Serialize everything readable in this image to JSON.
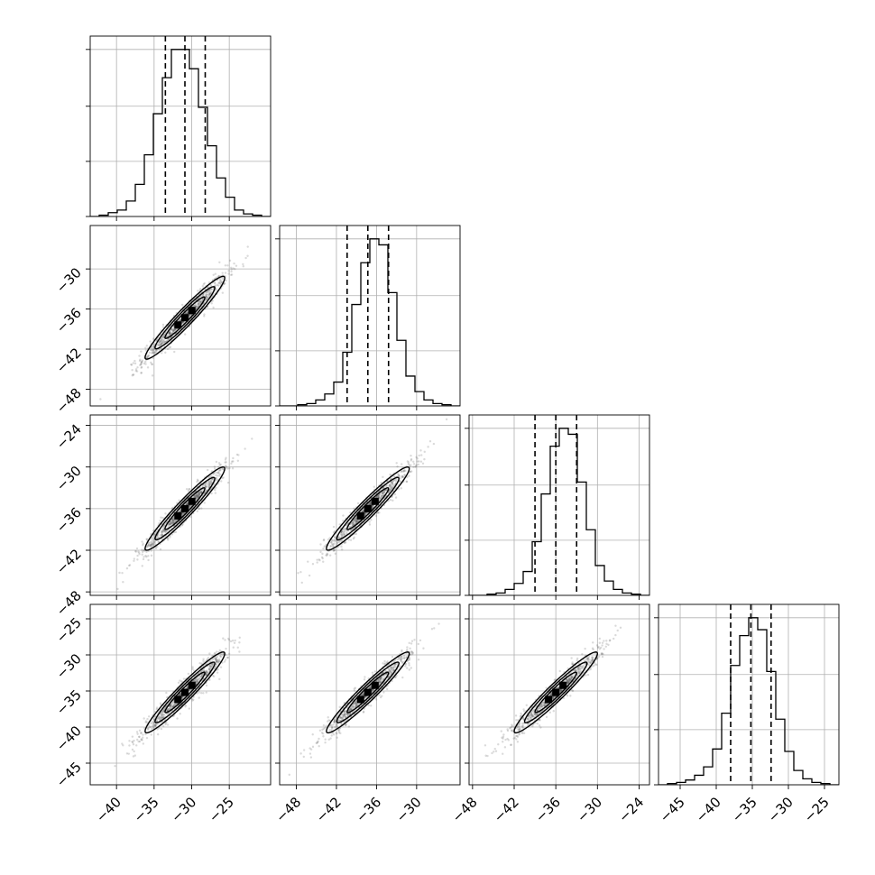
{
  "chart_data": {
    "type": "corner",
    "n_params": 4,
    "grid": true,
    "quantile_style": "dashed",
    "colors": {
      "lines": "#000000",
      "grid": "#b0b0b0",
      "points": "#555555"
    },
    "parameters": [
      {
        "range": [
          -43.5,
          -19.5
        ],
        "ticks": [
          -40,
          -35,
          -30,
          -25
        ],
        "tick_labels": [
          "−40",
          "−35",
          "−30",
          "−25"
        ],
        "quantiles": [
          -33.5,
          -30.9,
          -28.2
        ],
        "hist_edges": [
          -43.5,
          -42.3,
          -41.1,
          -39.9,
          -38.7,
          -37.5,
          -36.3,
          -35.1,
          -33.9,
          -32.7,
          -31.5,
          -30.3,
          -29.1,
          -27.9,
          -26.7,
          -25.5,
          -24.3,
          -23.1,
          -21.9,
          -20.7,
          -19.5
        ],
        "hist_counts": [
          0,
          1,
          3,
          5,
          12,
          25,
          48,
          80,
          108,
          130,
          130,
          115,
          85,
          55,
          30,
          15,
          5,
          2,
          1,
          0
        ]
      },
      {
        "range": [
          -50.5,
          -23.5
        ],
        "ticks": [
          -48,
          -42,
          -36,
          -30
        ],
        "tick_labels": [
          "−48",
          "−42",
          "−36",
          "−30"
        ],
        "quantiles": [
          -40.4,
          -37.3,
          -34.2
        ],
        "hist_edges": [
          -50.5,
          -49.15,
          -47.8,
          -46.45,
          -45.1,
          -43.75,
          -42.4,
          -41.05,
          -39.7,
          -38.35,
          -37.0,
          -35.65,
          -34.3,
          -32.95,
          -31.6,
          -30.25,
          -28.9,
          -27.55,
          -26.2,
          -24.85,
          -23.5
        ],
        "hist_counts": [
          0,
          0,
          1,
          2,
          5,
          10,
          20,
          45,
          85,
          120,
          140,
          135,
          95,
          55,
          25,
          12,
          5,
          2,
          1,
          0
        ]
      },
      {
        "range": [
          -48.5,
          -22.5
        ],
        "ticks": [
          -48,
          -42,
          -36,
          -30,
          -24
        ],
        "tick_labels": [
          "−48",
          "−42",
          "−36",
          "−30",
          "−24"
        ],
        "quantiles": [
          -39.0,
          -36.0,
          -33.0
        ],
        "hist_edges": [
          -48.5,
          -47.2,
          -45.9,
          -44.6,
          -43.3,
          -42.0,
          -40.7,
          -39.4,
          -38.1,
          -36.8,
          -35.5,
          -34.2,
          -32.9,
          -31.6,
          -30.3,
          -29.0,
          -27.7,
          -26.4,
          -25.1,
          -23.8,
          -22.5
        ],
        "hist_counts": [
          0,
          0,
          1,
          2,
          5,
          10,
          20,
          45,
          85,
          125,
          140,
          135,
          95,
          55,
          25,
          12,
          5,
          2,
          1,
          0
        ]
      },
      {
        "range": [
          -48.0,
          -23.0
        ],
        "ticks": [
          -45,
          -40,
          -35,
          -30,
          -25
        ],
        "tick_labels": [
          "−45",
          "−40",
          "−35",
          "−30",
          "−25"
        ],
        "quantiles": [
          -38.0,
          -35.2,
          -32.4
        ],
        "hist_edges": [
          -48.0,
          -46.75,
          -45.5,
          -44.25,
          -43.0,
          -41.75,
          -40.5,
          -39.25,
          -38.0,
          -36.75,
          -35.5,
          -34.25,
          -33.0,
          -31.75,
          -30.5,
          -29.25,
          -28.0,
          -26.75,
          -25.5,
          -24.25,
          -23.0
        ],
        "hist_counts": [
          0,
          1,
          2,
          4,
          8,
          15,
          30,
          60,
          100,
          125,
          140,
          130,
          95,
          55,
          28,
          12,
          5,
          2,
          1,
          0
        ]
      }
    ]
  }
}
